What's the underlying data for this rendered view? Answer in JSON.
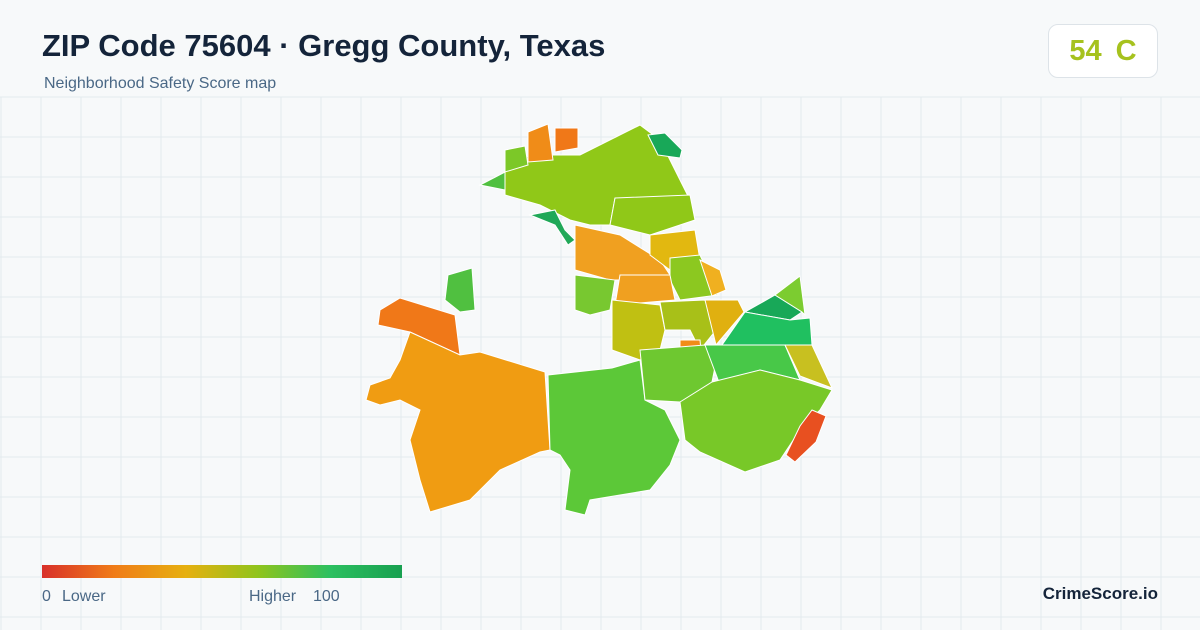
{
  "header": {
    "title": "ZIP Code 75604 · Gregg County, Texas",
    "subtitle": "Neighborhood Safety Score map"
  },
  "score": {
    "value": 54,
    "grade": "C"
  },
  "legend": {
    "min": 0,
    "low_label": "Lower",
    "high_label": "Higher",
    "max": 100
  },
  "brand": "CrimeScore.io"
}
